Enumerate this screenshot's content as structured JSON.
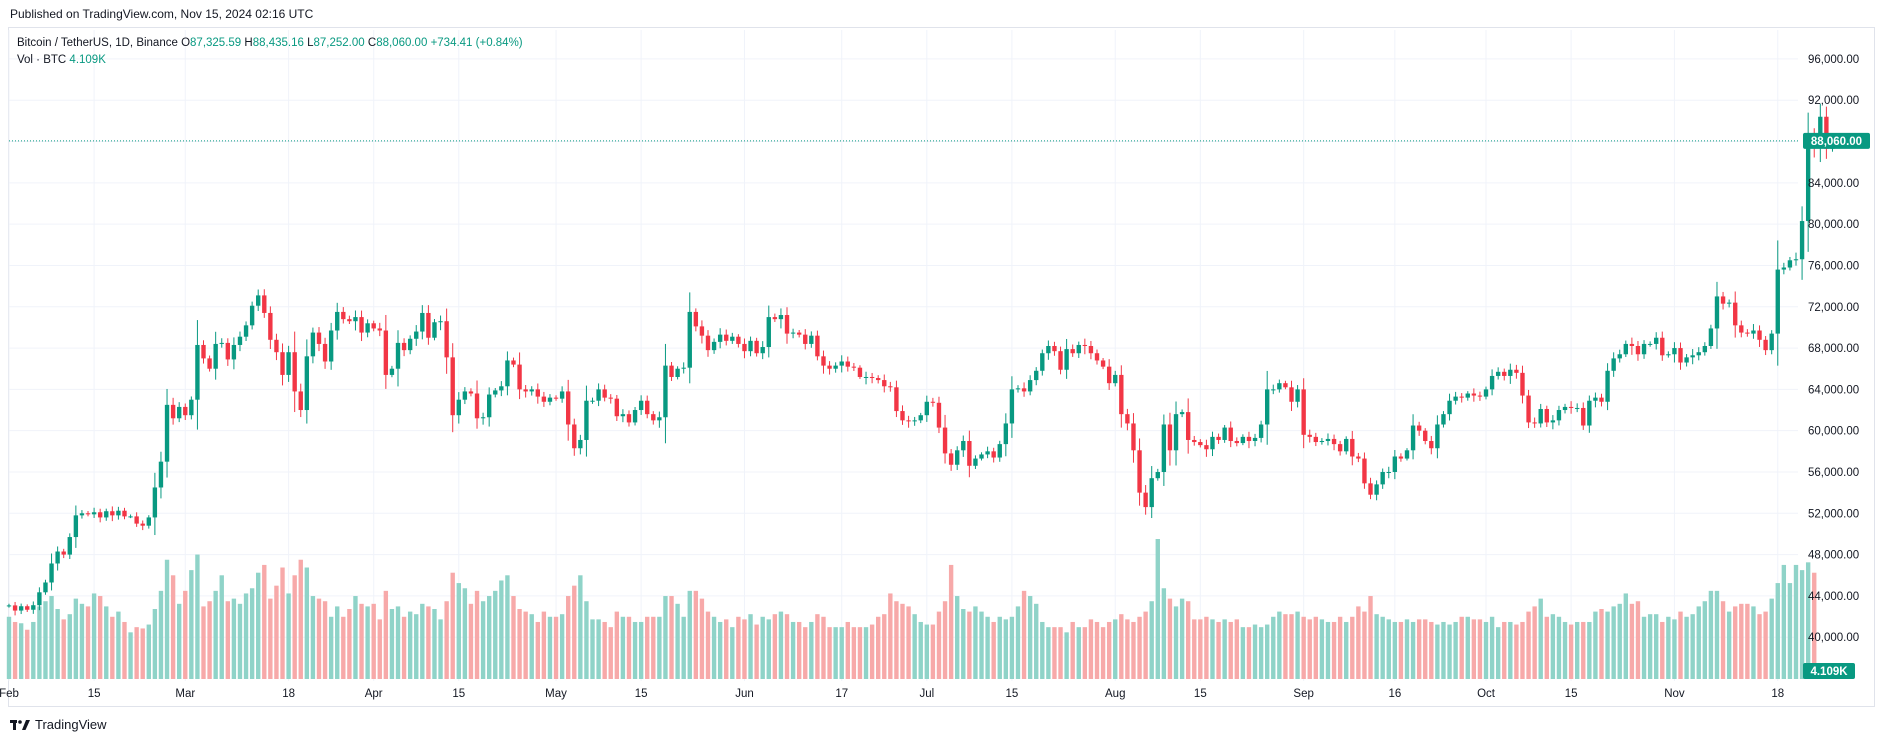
{
  "header": {
    "published": "Published on TradingView.com, Nov 15, 2024 02:16 UTC"
  },
  "legend": {
    "symbol": "Bitcoin / TetherUS, 1D, Binance",
    "open_label": "O",
    "open": "87,325.59",
    "high_label": "H",
    "high": "88,435.16",
    "low_label": "L",
    "low": "87,252.00",
    "close_label": "C",
    "close": "88,060.00",
    "change": "+734.41 (+0.84%)",
    "volume_label": "Vol · BTC",
    "volume": "4.109K"
  },
  "footer": {
    "brand": "TradingView",
    "logo_icon": "tradingview-logo-icon"
  },
  "colors": {
    "up": "#089981",
    "down": "#f23645",
    "vol_up": "#8fd3c8",
    "vol_down": "#f7a9a9",
    "grid": "#f0f3fa"
  },
  "chart_data": {
    "type": "candlestick",
    "title": "Bitcoin / TetherUS, 1D, Binance",
    "y_ticks": [
      "40,000.00",
      "44,000.00",
      "48,000.00",
      "52,000.00",
      "56,000.00",
      "60,000.00",
      "64,000.00",
      "68,000.00",
      "72,000.00",
      "76,000.00",
      "80,000.00",
      "84,000.00",
      "88,000.00",
      "92,000.00",
      "96,000.00"
    ],
    "y_tick_values": [
      40000,
      44000,
      48000,
      52000,
      56000,
      60000,
      64000,
      68000,
      72000,
      76000,
      80000,
      84000,
      88000,
      92000,
      96000
    ],
    "ylim": [
      37600,
      98800
    ],
    "x_ticks": [
      {
        "label": "Feb",
        "date": "2024-02-01"
      },
      {
        "label": "15",
        "date": "2024-02-15"
      },
      {
        "label": "Mar",
        "date": "2024-03-01"
      },
      {
        "label": "18",
        "date": "2024-03-18"
      },
      {
        "label": "Apr",
        "date": "2024-04-01"
      },
      {
        "label": "15",
        "date": "2024-04-15"
      },
      {
        "label": "May",
        "date": "2024-05-01"
      },
      {
        "label": "15",
        "date": "2024-05-15"
      },
      {
        "label": "Jun",
        "date": "2024-06-01"
      },
      {
        "label": "17",
        "date": "2024-06-17"
      },
      {
        "label": "Jul",
        "date": "2024-07-01"
      },
      {
        "label": "15",
        "date": "2024-07-15"
      },
      {
        "label": "Aug",
        "date": "2024-08-01"
      },
      {
        "label": "15",
        "date": "2024-08-15"
      },
      {
        "label": "Sep",
        "date": "2024-09-01"
      },
      {
        "label": "16",
        "date": "2024-09-16"
      },
      {
        "label": "Oct",
        "date": "2024-10-01"
      },
      {
        "label": "15",
        "date": "2024-10-15"
      },
      {
        "label": "Nov",
        "date": "2024-11-01"
      },
      {
        "label": "18",
        "date": "2024-11-18"
      }
    ],
    "x_range": [
      "2024-02-01",
      "2024-11-21"
    ],
    "last_price": 88060,
    "last_price_label": "88,060.00",
    "volume_badge": "4.109K",
    "start_date": "2024-02-01",
    "closes": [
      43080,
      42580,
      43000,
      42660,
      43100,
      44350,
      45300,
      47140,
      48300,
      48000,
      49700,
      51800,
      52000,
      51900,
      52100,
      51600,
      52200,
      51800,
      52250,
      51700,
      51700,
      51000,
      50800,
      51600,
      54500,
      57000,
      62500,
      61200,
      62300,
      61500,
      63000,
      68300,
      67000,
      66000,
      68400,
      68500,
      66900,
      68300,
      69100,
      70200,
      72100,
      73100,
      71400,
      68800,
      67600,
      65400,
      67600,
      63800,
      62000,
      67200,
      69500,
      68400,
      66700,
      69700,
      71500,
      70800,
      70600,
      71000,
      69500,
      70400,
      69900,
      69700,
      65400,
      66000,
      68500,
      67800,
      68900,
      69600,
      71400,
      69000,
      70500,
      70600,
      67100,
      61500,
      63000,
      63800,
      63600,
      61200,
      61300,
      63500,
      63900,
      64300,
      66800,
      66400,
      64000,
      63800,
      64000,
      63300,
      62800,
      63200,
      63100,
      63800,
      60600,
      58300,
      59100,
      62900,
      62900,
      64000,
      63200,
      63100,
      61400,
      61600,
      60800,
      62000,
      62900,
      61600,
      61000,
      61300,
      66300,
      65200,
      66000,
      66100,
      71500,
      70100,
      69200,
      67800,
      68600,
      69300,
      68700,
      69100,
      68400,
      67700,
      68700,
      67500,
      68100,
      71000,
      70800,
      71200,
      69400,
      69500,
      69300,
      68400,
      69200,
      67200,
      66300,
      66000,
      66300,
      66700,
      66200,
      66100,
      65200,
      65200,
      65100,
      64900,
      64300,
      64200,
      61900,
      61000,
      60900,
      61000,
      61500,
      62800,
      62700,
      60300,
      57800,
      56700,
      58100,
      59000,
      56600,
      57300,
      57700,
      58000,
      57400,
      58700,
      60700,
      64000,
      64100,
      63800,
      64900,
      65800,
      67500,
      68200,
      67700,
      65900,
      67900,
      67500,
      68300,
      68200,
      67500,
      66800,
      66200,
      64600,
      65400,
      61600,
      60700,
      58100,
      54000,
      52600,
      55400,
      56000,
      60600,
      58100,
      61600,
      61800,
      59100,
      58900,
      58600,
      58200,
      59400,
      59100,
      60300,
      59000,
      58800,
      59400,
      59000,
      59300,
      60600,
      64000,
      64000,
      64600,
      64200,
      62800,
      64000,
      59600,
      59400,
      58900,
      59000,
      59200,
      58700,
      58000,
      59200,
      57500,
      57300,
      54900,
      53800,
      54800,
      56000,
      56000,
      57500,
      57300,
      58100,
      60500,
      60000,
      59000,
      58300,
      60600,
      61600,
      62900,
      63300,
      63200,
      63600,
      63400,
      63300,
      64000,
      65300,
      65700,
      65300,
      65900,
      65600,
      63400,
      60800,
      60700,
      62100,
      60800,
      61000,
      62000,
      62300,
      62200,
      62200,
      60500,
      62900,
      63200,
      62800,
      65800,
      67000,
      67400,
      68400,
      68200,
      67400,
      68400,
      68400,
      69000,
      67300,
      67400,
      68000,
      66600,
      67100,
      67300,
      67600,
      68200,
      69900,
      73000,
      72300,
      72400,
      70200,
      69500,
      69400,
      69700,
      68800,
      67800,
      69400,
      75600,
      75800,
      76500,
      76600,
      80300,
      88500,
      87400,
      90400,
      87300,
      88060
    ],
    "volumes": [
      24000,
      22000,
      21500,
      19000,
      22000,
      28000,
      30000,
      32000,
      27000,
      23000,
      25000,
      31000,
      29000,
      28000,
      33000,
      32000,
      28000,
      24000,
      26000,
      22000,
      18000,
      20000,
      19500,
      21000,
      27000,
      34000,
      46000,
      40000,
      29000,
      34000,
      42000,
      48000,
      28000,
      30000,
      34000,
      40000,
      30000,
      31000,
      29000,
      33000,
      35000,
      41000,
      44000,
      31000,
      36000,
      43000,
      33000,
      40000,
      46000,
      43000,
      32000,
      31000,
      30000,
      24000,
      28000,
      24000,
      27000,
      32000,
      29000,
      28000,
      29000,
      23000,
      34000,
      27000,
      28000,
      24000,
      26000,
      25000,
      29000,
      28000,
      27000,
      23000,
      30000,
      41000,
      37000,
      35000,
      29000,
      34000,
      30000,
      32000,
      34000,
      38000,
      40000,
      32000,
      27000,
      26000,
      25000,
      22000,
      26000,
      24000,
      24000,
      25000,
      32000,
      36000,
      40000,
      30000,
      23000,
      23000,
      22000,
      20000,
      26000,
      24000,
      24000,
      22000,
      22000,
      24000,
      24000,
      24000,
      32000,
      32000,
      29000,
      24000,
      34000,
      34000,
      31000,
      26000,
      24000,
      22000,
      23000,
      20000,
      24000,
      23000,
      25000,
      21000,
      24000,
      23000,
      25000,
      26000,
      25000,
      22000,
      22000,
      20000,
      22000,
      25000,
      24000,
      20000,
      20000,
      20000,
      22000,
      20000,
      20000,
      20000,
      21000,
      24000,
      25000,
      33000,
      30000,
      29000,
      28000,
      25000,
      22000,
      21000,
      21000,
      26000,
      30000,
      44000,
      32000,
      27000,
      26000,
      28000,
      26000,
      24000,
      22000,
      24000,
      23000,
      24000,
      28000,
      34000,
      32000,
      29000,
      22000,
      20000,
      20000,
      20000,
      18000,
      22000,
      20000,
      20000,
      23000,
      22000,
      20000,
      22000,
      23000,
      25000,
      23000,
      22000,
      24000,
      26000,
      30000,
      54000,
      35000,
      31000,
      28000,
      31000,
      30000,
      23000,
      23000,
      24000,
      23000,
      22000,
      23000,
      22000,
      23000,
      20000,
      20000,
      21000,
      20000,
      21000,
      24000,
      26000,
      25000,
      25000,
      26000,
      24000,
      23000,
      24000,
      23000,
      22000,
      22000,
      24000,
      22000,
      24000,
      28000,
      26000,
      32000,
      25000,
      24000,
      23000,
      22000,
      22000,
      23000,
      22000,
      23000,
      23000,
      22000,
      21000,
      22000,
      21000,
      22000,
      24000,
      24000,
      23000,
      23000,
      22000,
      24000,
      20000,
      22000,
      22000,
      21000,
      22000,
      26000,
      28000,
      31000,
      24000,
      25000,
      24000,
      22000,
      21000,
      22000,
      22000,
      22000,
      26000,
      27000,
      26000,
      28000,
      29000,
      33000,
      29000,
      30000,
      24000,
      25000,
      25000,
      22000,
      24000,
      23000,
      26000,
      24000,
      25000,
      28000,
      30000,
      34000,
      34000,
      30000,
      26000,
      28000,
      29000,
      29000,
      28000,
      25000,
      26000,
      31000,
      37000,
      44000,
      37000,
      44000,
      42000,
      45000,
      41000,
      4109
    ]
  }
}
